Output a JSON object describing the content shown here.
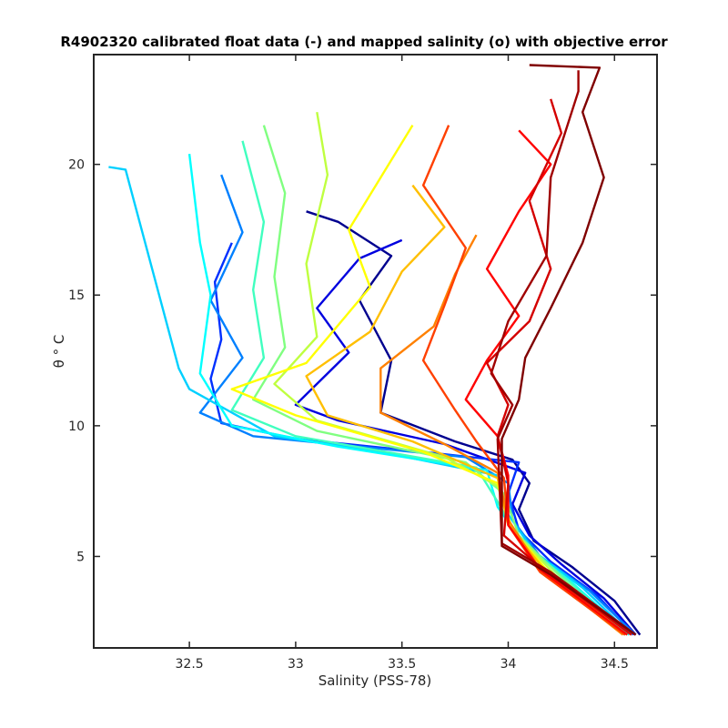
{
  "chart_data": {
    "type": "line",
    "title": "R4902320 calibrated float data (-) and mapped salinity (o) with objective error",
    "xlabel": "Salinity (PSS-78)",
    "ylabel": "θ ° C",
    "xlim": [
      32.05,
      34.7
    ],
    "ylim": [
      1.5,
      24.2
    ],
    "x_ticks": [
      32.5,
      33,
      33.5,
      34,
      34.5
    ],
    "x_tick_labels": [
      "32.5",
      "33",
      "33.5",
      "34",
      "34.5"
    ],
    "y_ticks": [
      5,
      10,
      15,
      20
    ],
    "y_tick_labels": [
      "5",
      "10",
      "15",
      "20"
    ],
    "grid": false,
    "legend": "none",
    "colormap": "jet",
    "colormap_meaning": "profile number (blue = early, dark red = late)",
    "series": [
      {
        "color": "#00008f",
        "points": [
          [
            34.62,
            2.0
          ],
          [
            34.5,
            3.3
          ],
          [
            34.3,
            4.6
          ],
          [
            34.12,
            5.6
          ],
          [
            34.05,
            6.8
          ],
          [
            34.1,
            7.8
          ],
          [
            34.02,
            8.7
          ],
          [
            33.75,
            9.4
          ],
          [
            33.4,
            10.5
          ],
          [
            33.45,
            12.5
          ],
          [
            33.3,
            14.8
          ],
          [
            33.45,
            16.5
          ],
          [
            33.2,
            17.8
          ],
          [
            33.05,
            18.2
          ]
        ]
      },
      {
        "color": "#0000df",
        "points": [
          [
            34.6,
            2.0
          ],
          [
            34.45,
            3.4
          ],
          [
            34.25,
            4.7
          ],
          [
            34.1,
            5.8
          ],
          [
            34.02,
            7.0
          ],
          [
            34.08,
            8.2
          ],
          [
            33.7,
            9.3
          ],
          [
            33.2,
            10.2
          ],
          [
            33.0,
            10.8
          ],
          [
            33.25,
            12.8
          ],
          [
            33.1,
            14.5
          ],
          [
            33.3,
            16.4
          ],
          [
            33.5,
            17.1
          ]
        ]
      },
      {
        "color": "#0030ff",
        "points": [
          [
            34.59,
            2.0
          ],
          [
            34.42,
            3.5
          ],
          [
            34.2,
            4.8
          ],
          [
            34.05,
            6.0
          ],
          [
            34.0,
            7.4
          ],
          [
            34.05,
            8.6
          ],
          [
            33.6,
            9.0
          ],
          [
            33.0,
            9.5
          ],
          [
            32.65,
            10.1
          ],
          [
            32.6,
            11.8
          ],
          [
            32.65,
            13.3
          ],
          [
            32.62,
            15.5
          ],
          [
            32.7,
            17.0
          ]
        ]
      },
      {
        "color": "#0080ff",
        "points": [
          [
            34.6,
            2.0
          ],
          [
            34.38,
            3.7
          ],
          [
            34.15,
            5.0
          ],
          [
            34.02,
            6.4
          ],
          [
            34.0,
            7.8
          ],
          [
            33.8,
            8.8
          ],
          [
            33.3,
            9.2
          ],
          [
            32.8,
            9.6
          ],
          [
            32.55,
            10.5
          ],
          [
            32.75,
            12.6
          ],
          [
            32.6,
            14.8
          ],
          [
            32.75,
            17.4
          ],
          [
            32.65,
            19.6
          ]
        ]
      },
      {
        "color": "#00d0ff",
        "points": [
          [
            34.58,
            2.0
          ],
          [
            34.35,
            3.8
          ],
          [
            34.12,
            5.2
          ],
          [
            34.0,
            6.6
          ],
          [
            33.95,
            8.1
          ],
          [
            33.4,
            9.0
          ],
          [
            32.9,
            9.6
          ],
          [
            32.5,
            11.4
          ],
          [
            32.45,
            12.2
          ],
          [
            32.2,
            19.8
          ],
          [
            32.12,
            19.9
          ]
        ]
      },
      {
        "color": "#00ffff",
        "points": [
          [
            34.57,
            2.0
          ],
          [
            34.3,
            4.0
          ],
          [
            34.08,
            5.4
          ],
          [
            33.95,
            6.9
          ],
          [
            33.9,
            8.3
          ],
          [
            33.2,
            9.2
          ],
          [
            32.7,
            10.0
          ],
          [
            32.55,
            12.0
          ],
          [
            32.6,
            15.0
          ],
          [
            32.55,
            17.0
          ],
          [
            32.5,
            20.4
          ]
        ]
      },
      {
        "color": "#40ffbf",
        "points": [
          [
            34.56,
            2.0
          ],
          [
            34.28,
            4.1
          ],
          [
            34.05,
            5.6
          ],
          [
            33.95,
            7.1
          ],
          [
            33.85,
            8.4
          ],
          [
            33.0,
            9.6
          ],
          [
            32.7,
            10.6
          ],
          [
            32.85,
            12.6
          ],
          [
            32.8,
            15.2
          ],
          [
            32.85,
            17.8
          ],
          [
            32.75,
            20.9
          ]
        ]
      },
      {
        "color": "#80ff80",
        "points": [
          [
            34.55,
            2.0
          ],
          [
            34.25,
            4.2
          ],
          [
            34.05,
            5.8
          ],
          [
            33.98,
            7.4
          ],
          [
            33.8,
            8.6
          ],
          [
            33.1,
            9.8
          ],
          [
            32.8,
            11.0
          ],
          [
            32.95,
            13.0
          ],
          [
            32.9,
            15.7
          ],
          [
            32.95,
            18.9
          ],
          [
            32.85,
            21.5
          ]
        ]
      },
      {
        "color": "#bfff40",
        "points": [
          [
            34.55,
            2.0
          ],
          [
            34.22,
            4.3
          ],
          [
            34.02,
            6.0
          ],
          [
            33.95,
            7.7
          ],
          [
            33.7,
            8.8
          ],
          [
            33.1,
            10.2
          ],
          [
            32.9,
            11.6
          ],
          [
            33.1,
            13.4
          ],
          [
            33.05,
            16.2
          ],
          [
            33.15,
            19.6
          ],
          [
            33.1,
            22.0
          ]
        ]
      },
      {
        "color": "#ffff00",
        "points": [
          [
            34.55,
            2.0
          ],
          [
            34.2,
            4.3
          ],
          [
            34.02,
            6.0
          ],
          [
            33.95,
            7.8
          ],
          [
            33.6,
            9.0
          ],
          [
            33.0,
            10.4
          ],
          [
            32.7,
            11.4
          ],
          [
            33.05,
            12.4
          ],
          [
            33.35,
            15.3
          ],
          [
            33.25,
            17.5
          ],
          [
            33.55,
            21.5
          ]
        ]
      },
      {
        "color": "#ffbf00",
        "points": [
          [
            34.55,
            2.0
          ],
          [
            34.18,
            4.4
          ],
          [
            34.0,
            6.2
          ],
          [
            33.95,
            8.0
          ],
          [
            33.55,
            9.4
          ],
          [
            33.15,
            10.4
          ],
          [
            33.05,
            11.9
          ],
          [
            33.35,
            13.6
          ],
          [
            33.5,
            15.9
          ],
          [
            33.7,
            17.6
          ],
          [
            33.55,
            19.2
          ]
        ]
      },
      {
        "color": "#ff8000",
        "points": [
          [
            34.54,
            2.0
          ],
          [
            34.15,
            4.5
          ],
          [
            34.0,
            6.4
          ],
          [
            33.95,
            8.2
          ],
          [
            33.7,
            9.3
          ],
          [
            33.4,
            10.5
          ],
          [
            33.4,
            12.2
          ],
          [
            33.65,
            13.8
          ],
          [
            33.75,
            15.8
          ],
          [
            33.85,
            17.3
          ]
        ]
      },
      {
        "color": "#ff4000",
        "points": [
          [
            34.55,
            2.0
          ],
          [
            34.15,
            4.4
          ],
          [
            34.0,
            6.2
          ],
          [
            33.98,
            8.0
          ],
          [
            33.85,
            9.4
          ],
          [
            33.75,
            10.6
          ],
          [
            33.6,
            12.5
          ],
          [
            33.7,
            14.6
          ],
          [
            33.8,
            16.8
          ],
          [
            33.6,
            19.2
          ],
          [
            33.72,
            21.5
          ]
        ]
      },
      {
        "color": "#ff0000",
        "points": [
          [
            34.56,
            2.0
          ],
          [
            34.15,
            4.5
          ],
          [
            34.0,
            6.2
          ],
          [
            34.0,
            8.1
          ],
          [
            33.95,
            9.6
          ],
          [
            33.8,
            11.0
          ],
          [
            33.9,
            12.5
          ],
          [
            34.05,
            14.2
          ],
          [
            33.9,
            16.0
          ],
          [
            34.05,
            18.2
          ],
          [
            34.2,
            20.0
          ],
          [
            34.05,
            21.3
          ]
        ]
      },
      {
        "color": "#d40000",
        "points": [
          [
            34.58,
            2.0
          ],
          [
            34.15,
            4.6
          ],
          [
            33.98,
            5.8
          ],
          [
            34.0,
            7.8
          ],
          [
            33.95,
            9.6
          ],
          [
            34.0,
            10.8
          ],
          [
            33.9,
            12.4
          ],
          [
            34.1,
            14.0
          ],
          [
            34.2,
            16.0
          ],
          [
            34.1,
            18.6
          ],
          [
            34.25,
            21.2
          ],
          [
            34.2,
            22.5
          ]
        ]
      },
      {
        "color": "#a00000",
        "points": [
          [
            34.6,
            2.0
          ],
          [
            34.2,
            4.4
          ],
          [
            33.97,
            5.5
          ],
          [
            33.96,
            7.6
          ],
          [
            33.95,
            9.5
          ],
          [
            34.02,
            10.8
          ],
          [
            33.92,
            12.0
          ],
          [
            34.0,
            14.0
          ],
          [
            34.18,
            16.5
          ],
          [
            34.2,
            19.5
          ],
          [
            34.33,
            22.8
          ],
          [
            34.33,
            23.6
          ]
        ]
      },
      {
        "color": "#800000",
        "points": [
          [
            34.6,
            2.0
          ],
          [
            34.2,
            4.3
          ],
          [
            33.97,
            5.4
          ],
          [
            33.97,
            7.4
          ],
          [
            33.97,
            9.5
          ],
          [
            34.05,
            11.0
          ],
          [
            34.08,
            12.6
          ],
          [
            34.2,
            14.5
          ],
          [
            34.35,
            17.0
          ],
          [
            34.45,
            19.5
          ],
          [
            34.35,
            22.0
          ],
          [
            34.43,
            23.7
          ],
          [
            34.1,
            23.8
          ]
        ]
      }
    ]
  }
}
